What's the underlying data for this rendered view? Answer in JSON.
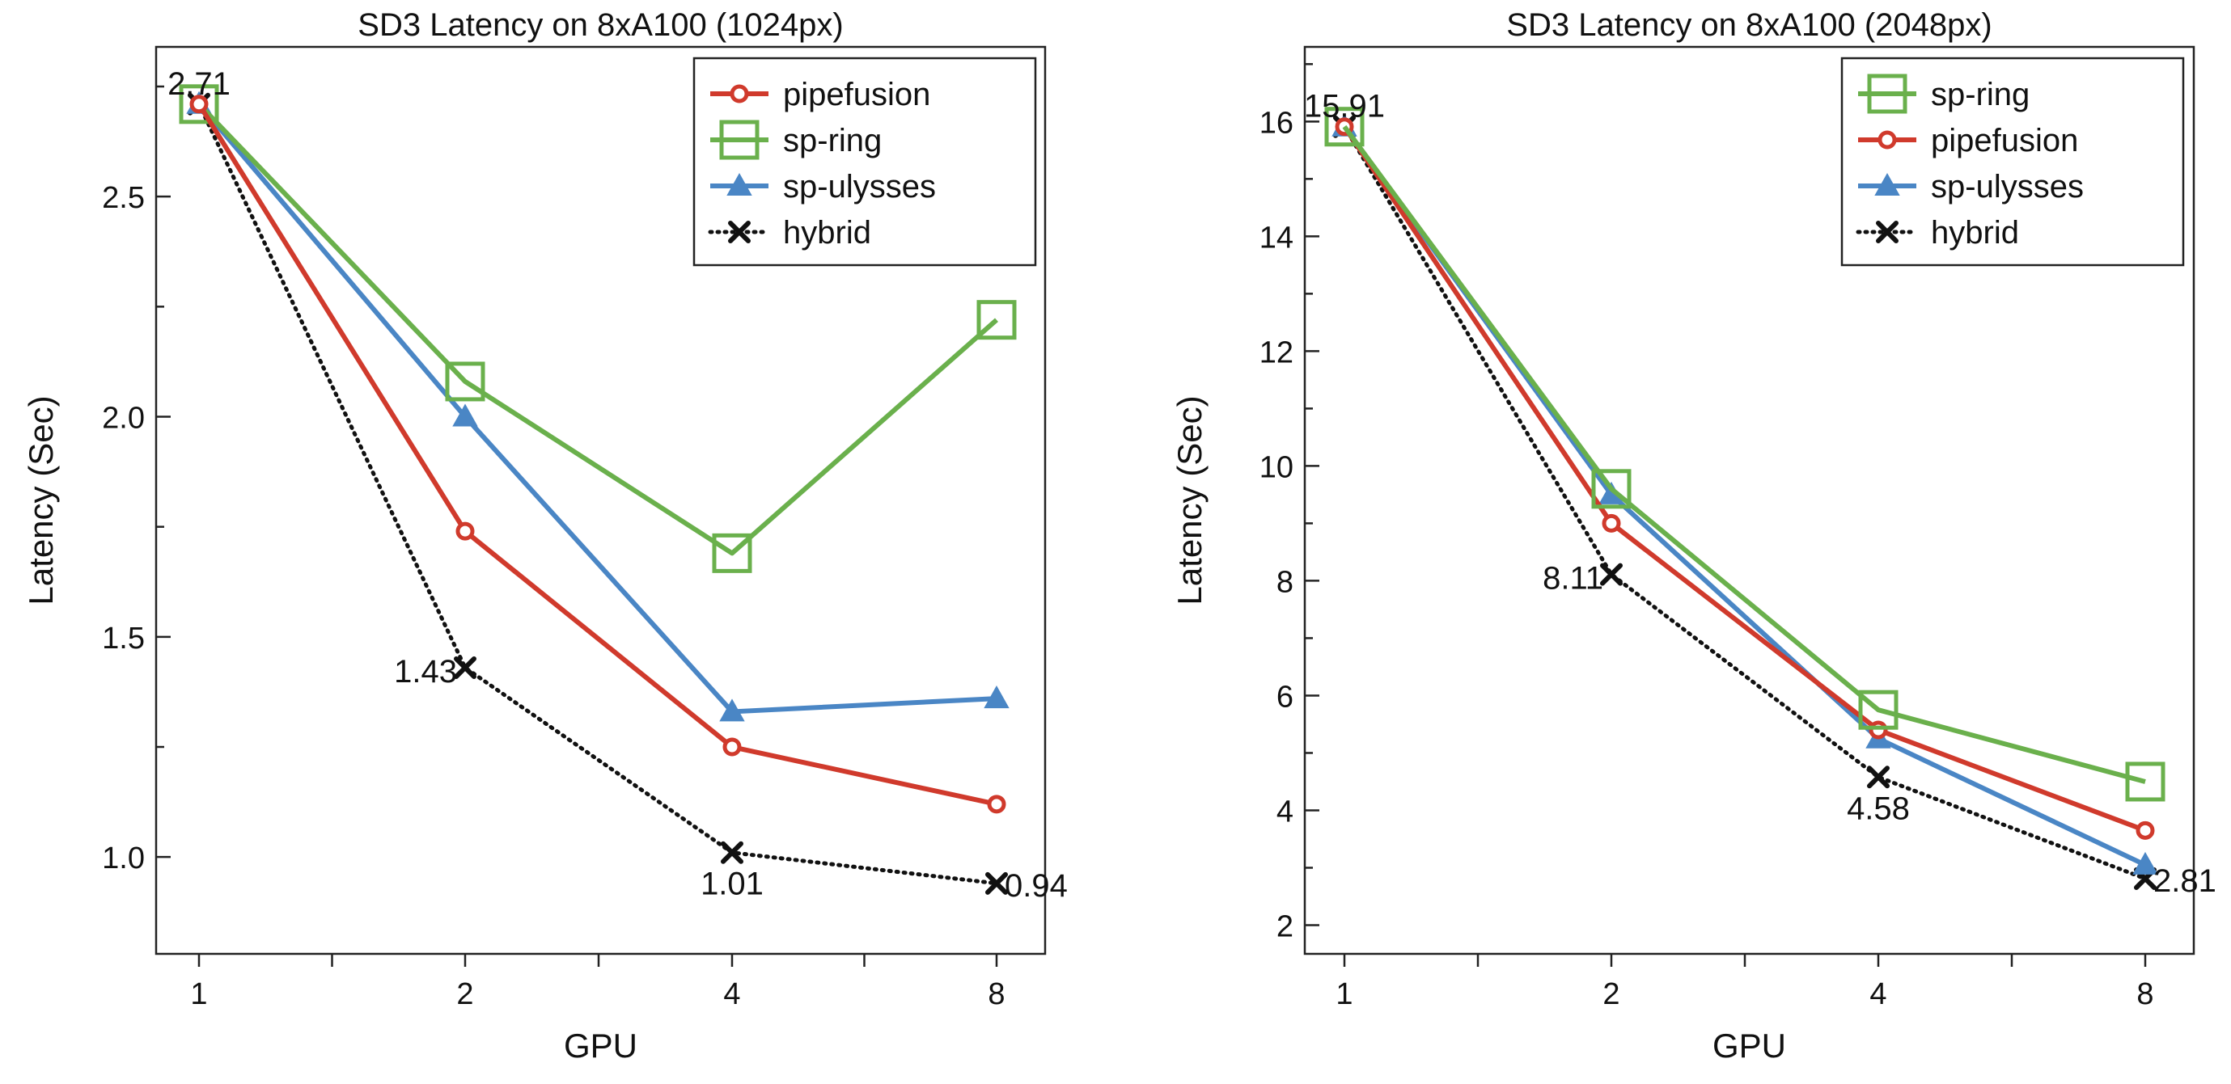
{
  "chart_data": [
    {
      "type": "line",
      "title": "SD3 Latency on 8xA100 (1024px)",
      "xlabel": "GPU",
      "ylabel": "Latency (Sec)",
      "categories": [
        "1",
        "2",
        "4",
        "8"
      ],
      "ylim": [
        0.78,
        2.84
      ],
      "yticks": [
        1.0,
        1.5,
        2.0,
        2.5
      ],
      "ytick_labels": [
        "1.0",
        "1.5",
        "2.0",
        "2.5"
      ],
      "grid": false,
      "legend_position": "top-right",
      "series": [
        {
          "name": "pipefusion",
          "values": [
            2.71,
            1.74,
            1.25,
            1.12
          ],
          "color": "#d03a2c",
          "marker": "circle",
          "linestyle": "solid"
        },
        {
          "name": "sp-ring",
          "values": [
            2.71,
            2.08,
            1.69,
            2.22
          ],
          "color": "#6ab04c",
          "marker": "square",
          "linestyle": "solid"
        },
        {
          "name": "sp-ulysses",
          "values": [
            2.71,
            2.0,
            1.33,
            1.36
          ],
          "color": "#4a86c5",
          "marker": "triangle",
          "linestyle": "solid"
        },
        {
          "name": "hybrid",
          "values": [
            2.71,
            1.43,
            1.01,
            0.94
          ],
          "color": "#111111",
          "marker": "x",
          "linestyle": "dotted"
        }
      ],
      "annotations": [
        {
          "category": "1",
          "value": 2.71,
          "text": "2.71",
          "anchor": "above"
        },
        {
          "category": "2",
          "value": 1.43,
          "text": "1.43",
          "anchor": "left"
        },
        {
          "category": "4",
          "value": 1.01,
          "text": "1.01",
          "anchor": "below"
        },
        {
          "category": "8",
          "value": 0.94,
          "text": "0.94",
          "anchor": "right"
        }
      ]
    },
    {
      "type": "line",
      "title": "SD3 Latency on 8xA100 (2048px)",
      "xlabel": "GPU",
      "ylabel": "Latency (Sec)",
      "categories": [
        "1",
        "2",
        "4",
        "8"
      ],
      "ylim": [
        1.5,
        17.3
      ],
      "yticks": [
        2,
        4,
        6,
        8,
        10,
        12,
        14,
        16
      ],
      "ytick_labels": [
        "2",
        "4",
        "6",
        "8",
        "10",
        "12",
        "14",
        "16"
      ],
      "grid": false,
      "legend_position": "top-right",
      "series": [
        {
          "name": "sp-ring",
          "values": [
            15.91,
            9.6,
            5.75,
            4.5
          ],
          "color": "#6ab04c",
          "marker": "square",
          "linestyle": "solid"
        },
        {
          "name": "pipefusion",
          "values": [
            15.91,
            9.0,
            5.4,
            3.65
          ],
          "color": "#d03a2c",
          "marker": "circle",
          "linestyle": "solid"
        },
        {
          "name": "sp-ulysses",
          "values": [
            15.91,
            9.5,
            5.25,
            3.05
          ],
          "color": "#4a86c5",
          "marker": "triangle",
          "linestyle": "solid"
        },
        {
          "name": "hybrid",
          "values": [
            15.91,
            8.11,
            4.58,
            2.81
          ],
          "color": "#111111",
          "marker": "x",
          "linestyle": "dotted"
        }
      ],
      "annotations": [
        {
          "category": "1",
          "value": 15.91,
          "text": "15.91",
          "anchor": "above"
        },
        {
          "category": "2",
          "value": 8.11,
          "text": "8.11",
          "anchor": "left"
        },
        {
          "category": "4",
          "value": 4.58,
          "text": "4.58",
          "anchor": "below"
        },
        {
          "category": "8",
          "value": 2.81,
          "text": "2.81",
          "anchor": "right"
        }
      ]
    }
  ]
}
